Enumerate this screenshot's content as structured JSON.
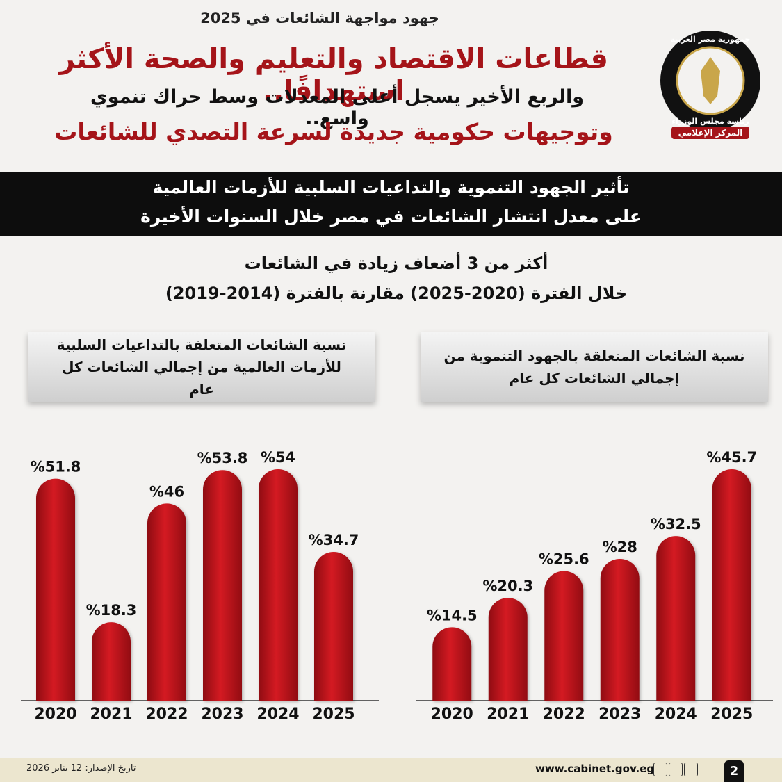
{
  "header": {
    "kicker": "جهود مواجهة الشائعات في 2025",
    "title": "قطاعات الاقتصاد والتعليم والصحة الأكثر استهدافًا..",
    "line2": "والربع الأخير يسجل أعلى المعدلات وسط حراك تنموي واسع..",
    "line3": "وتوجيهات حكومية جديدة لسرعة التصدي للشائعات"
  },
  "logo": {
    "top": "جمهورية مصر العربية",
    "bottom": "رئاسة مجلس الوزراء",
    "label": "المركز الإعلامي"
  },
  "banner": {
    "line1": "تأثير الجهود التنموية والتداعيات السلبية للأزمات العالمية",
    "line2": "على معدل انتشار الشائعات في مصر خلال السنوات الأخيرة"
  },
  "subtitle": {
    "line1": "أكثر من 3 أضعاف زيادة في الشائعات",
    "line2": "خلال الفترة (2020-2025) مقارنة بالفترة (2014-2019)"
  },
  "chart_data": [
    {
      "type": "bar",
      "title": "نسبة الشائعات المتعلقة بالتداعيات السلبية للأزمات العالمية من إجمالي الشائعات كل عام",
      "categories": [
        "2020",
        "2021",
        "2022",
        "2023",
        "2024",
        "2025"
      ],
      "values": [
        51.8,
        18.3,
        46,
        53.8,
        54,
        34.7
      ],
      "value_labels": [
        "%51.8",
        "%18.3",
        "%46",
        "%53.8",
        "%54",
        "%34.7"
      ],
      "color": "#c3141c"
    },
    {
      "type": "bar",
      "title": "نسبة الشائعات المتعلقة بالجهود التنموية من إجمالي الشائعات كل عام",
      "categories": [
        "2020",
        "2021",
        "2022",
        "2023",
        "2024",
        "2025"
      ],
      "values": [
        14.5,
        20.3,
        25.6,
        28,
        32.5,
        45.7
      ],
      "value_labels": [
        "%14.5",
        "%20.3",
        "%25.6",
        "%28",
        "%32.5",
        "%45.7"
      ],
      "color": "#c3141c"
    }
  ],
  "footer": {
    "site": "www.cabinet.gov.eg",
    "date": "تاريخ الإصدار: 12 يناير 2026",
    "page": "2"
  }
}
